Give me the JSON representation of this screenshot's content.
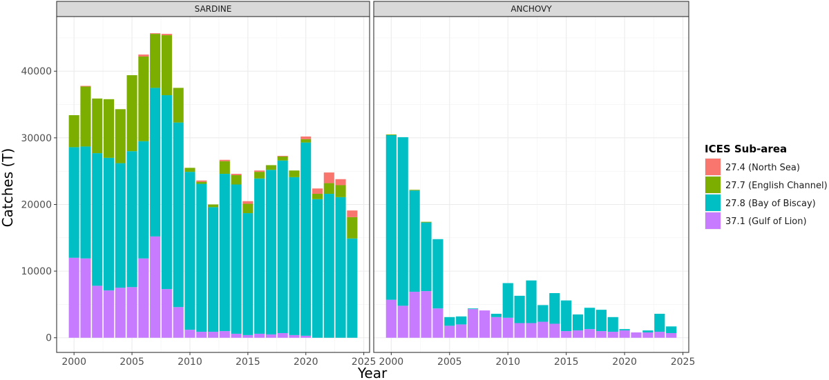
{
  "chart_data": {
    "type": "bar",
    "stacked": true,
    "xlabel": "Year",
    "ylabel": "Catches (T)",
    "x_ticks": [
      2000,
      2005,
      2010,
      2015,
      2020,
      2025
    ],
    "y_ticks": [
      0,
      10000,
      20000,
      30000,
      40000
    ],
    "xlim": [
      1998.5,
      2025.5
    ],
    "ylim": [
      -2200,
      48200
    ],
    "grid": true,
    "legend": {
      "title": "ICES Sub-area",
      "position": "right",
      "entries": [
        "27.4 (North Sea)",
        "27.7 (English Channel)",
        "27.8 (Bay of Biscay)",
        "37.1 (Gulf of Lion)"
      ]
    },
    "colors": {
      "27.4 (North Sea)": "#F8766D",
      "27.7 (English Channel)": "#7CAE00",
      "27.8 (Bay of Biscay)": "#00BFC4",
      "37.1 (Gulf of Lion)": "#C77CFF"
    },
    "stack_order": [
      "37.1 (Gulf of Lion)",
      "27.8 (Bay of Biscay)",
      "27.7 (English Channel)",
      "27.4 (North Sea)"
    ],
    "panels": [
      {
        "title": "SARDINE",
        "x": [
          2000,
          2001,
          2002,
          2003,
          2004,
          2005,
          2006,
          2007,
          2008,
          2009,
          2010,
          2011,
          2012,
          2013,
          2014,
          2015,
          2016,
          2017,
          2018,
          2019,
          2020,
          2021,
          2022,
          2023,
          2024
        ],
        "series": [
          {
            "name": "37.1 (Gulf of Lion)",
            "values": [
              12000,
              11900,
              7800,
              7100,
              7500,
              7600,
              11900,
              15200,
              7300,
              4600,
              1200,
              900,
              900,
              1000,
              600,
              400,
              600,
              500,
              700,
              400,
              300,
              0,
              0,
              0,
              0
            ]
          },
          {
            "name": "27.8 (Bay of Biscay)",
            "values": [
              16600,
              16800,
              19900,
              19900,
              18700,
              20400,
              17600,
              22300,
              29100,
              27700,
              23700,
              22200,
              18700,
              23600,
              22400,
              18300,
              23300,
              24700,
              25900,
              23700,
              29000,
              20800,
              21600,
              21100,
              14900
            ]
          },
          {
            "name": "27.7 (English Channel)",
            "values": [
              4800,
              9000,
              8200,
              8800,
              8100,
              11400,
              12700,
              8100,
              9000,
              5200,
              600,
              300,
              400,
              1900,
              1400,
              1400,
              1000,
              700,
              600,
              1000,
              500,
              800,
              1600,
              1800,
              3200
            ]
          },
          {
            "name": "27.4 (North Sea)",
            "values": [
              0,
              100,
              0,
              0,
              0,
              0,
              300,
              100,
              200,
              0,
              0,
              200,
              0,
              200,
              200,
              400,
              200,
              0,
              100,
              0,
              400,
              800,
              1600,
              900,
              1000
            ]
          }
        ]
      },
      {
        "title": "ANCHOVY",
        "x": [
          2000,
          2001,
          2002,
          2003,
          2004,
          2005,
          2006,
          2007,
          2008,
          2009,
          2010,
          2011,
          2012,
          2013,
          2014,
          2015,
          2016,
          2017,
          2018,
          2019,
          2020,
          2021,
          2022,
          2023,
          2024
        ],
        "series": [
          {
            "name": "37.1 (Gulf of Lion)",
            "values": [
              5700,
              4800,
              6900,
              7000,
              4400,
              1800,
              2000,
              4300,
              4100,
              3100,
              3000,
              2200,
              2200,
              2400,
              2100,
              1000,
              1100,
              1300,
              1000,
              900,
              1100,
              800,
              800,
              900,
              700
            ]
          },
          {
            "name": "27.8 (Bay of Biscay)",
            "values": [
              24700,
              25300,
              15200,
              10300,
              10400,
              1300,
              1200,
              100,
              0,
              500,
              5200,
              4100,
              6400,
              2500,
              4600,
              4600,
              2400,
              3200,
              3200,
              2200,
              200,
              0,
              300,
              2700,
              1000
            ]
          },
          {
            "name": "27.7 (English Channel)",
            "values": [
              100,
              0,
              100,
              100,
              0,
              0,
              0,
              0,
              0,
              0,
              0,
              0,
              0,
              0,
              0,
              0,
              0,
              0,
              0,
              0,
              0,
              0,
              0,
              0,
              0
            ]
          },
          {
            "name": "27.4 (North Sea)",
            "values": [
              0,
              0,
              0,
              0,
              0,
              0,
              0,
              0,
              0,
              0,
              0,
              0,
              0,
              0,
              0,
              0,
              0,
              0,
              0,
              0,
              0,
              0,
              0,
              0,
              0
            ]
          }
        ]
      }
    ]
  }
}
